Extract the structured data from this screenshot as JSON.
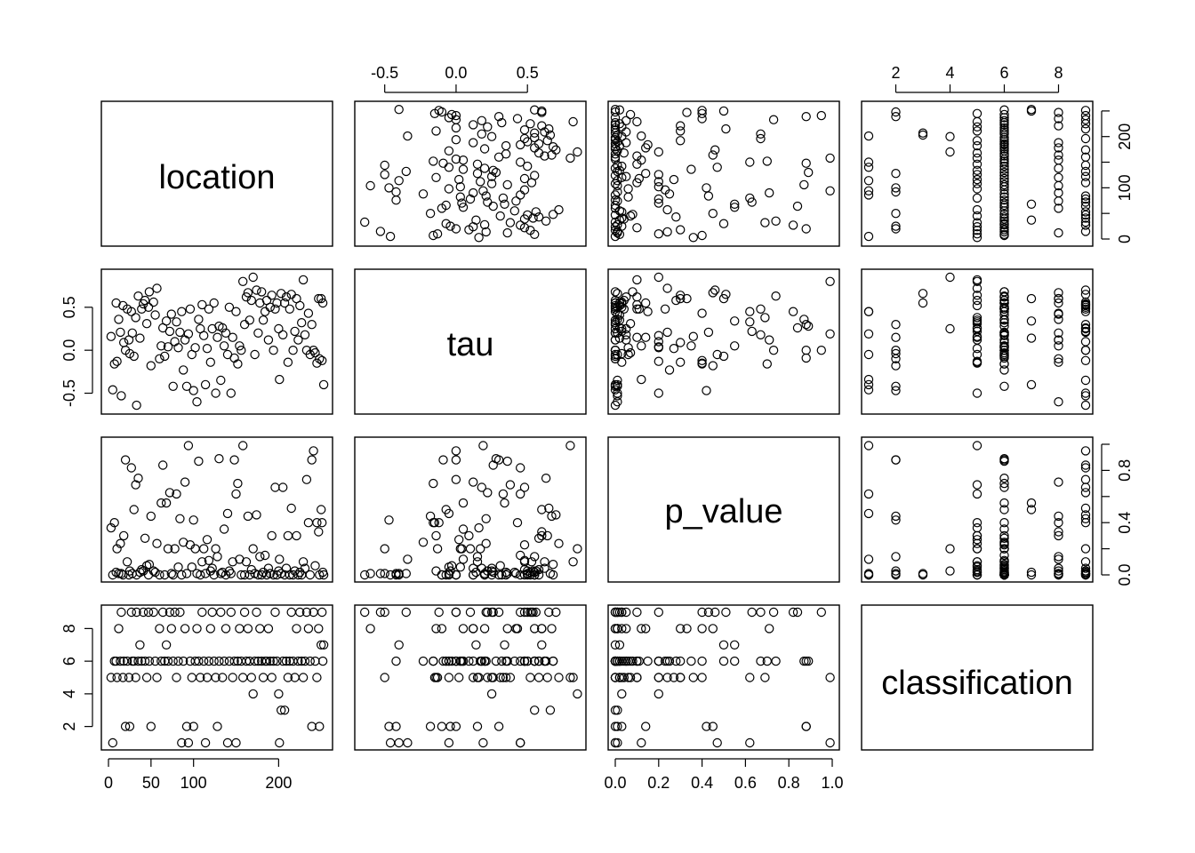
{
  "chart_data": {
    "type": "scatter",
    "variables": [
      "location",
      "tau",
      "p_value",
      "classification"
    ],
    "ranges": {
      "location": [
        0,
        255
      ],
      "tau": [
        -0.66,
        0.86
      ],
      "p_value": [
        0.0,
        1.0
      ],
      "classification": [
        1,
        9
      ]
    },
    "ticks": {
      "location": [
        0,
        50,
        100,
        200
      ],
      "tau": [
        -0.5,
        0.0,
        0.5
      ],
      "p_value": [
        0.0,
        0.2,
        0.4,
        0.6,
        0.8,
        1.0
      ],
      "p_value_vertical": [
        0.0,
        0.4,
        0.8
      ],
      "p_value_vertical_minor": [
        0.2,
        0.6,
        1.0
      ],
      "classification": [
        2,
        4,
        6,
        8
      ],
      "location_vertical": [
        0,
        100,
        200
      ],
      "location_vertical_minor": [
        50,
        150,
        250
      ]
    },
    "tick_labels": {
      "location_bottom": [
        "0",
        "50",
        "100",
        "200"
      ],
      "tau_top": [
        "-0.5",
        "0.0",
        "0.5"
      ],
      "tau_left": [
        "-0.5",
        "0.0",
        "0.5"
      ],
      "p_value_bottom": [
        "0.0",
        "0.2",
        "0.4",
        "0.6",
        "0.8",
        "1.0"
      ],
      "p_value_right": [
        "0.0",
        "0.4",
        "0.8"
      ],
      "classification_top": [
        "2",
        "4",
        "6",
        "8"
      ],
      "classification_left": [
        "2",
        "4",
        "6",
        "8"
      ],
      "location_right": [
        "0",
        "100",
        "200"
      ]
    },
    "grid": false,
    "legend": "none",
    "observations": [
      {
        "location": 3,
        "tau": 0.16,
        "p_value": 0.36,
        "classification": 5
      },
      {
        "location": 5,
        "tau": -0.46,
        "p_value": 0.0,
        "classification": 1
      },
      {
        "location": 7,
        "tau": -0.16,
        "p_value": 0.4,
        "classification": 6
      },
      {
        "location": 9,
        "tau": 0.55,
        "p_value": 0.02,
        "classification": 6
      },
      {
        "location": 10,
        "tau": -0.13,
        "p_value": 0.2,
        "classification": 5
      },
      {
        "location": 12,
        "tau": 0.36,
        "p_value": 0.01,
        "classification": 8
      },
      {
        "location": 14,
        "tau": 0.21,
        "p_value": 0.24,
        "classification": 6
      },
      {
        "location": 15,
        "tau": -0.53,
        "p_value": 0.01,
        "classification": 9
      },
      {
        "location": 17,
        "tau": 0.52,
        "p_value": 0.0,
        "classification": 5
      },
      {
        "location": 18,
        "tau": 0.09,
        "p_value": 0.3,
        "classification": 6
      },
      {
        "location": 20,
        "tau": 0.0,
        "p_value": 0.88,
        "classification": 2
      },
      {
        "location": 22,
        "tau": 0.48,
        "p_value": 0.1,
        "classification": 6
      },
      {
        "location": 24,
        "tau": 0.12,
        "p_value": 0.0,
        "classification": 5
      },
      {
        "location": 25,
        "tau": -0.04,
        "p_value": 0.03,
        "classification": 2
      },
      {
        "location": 27,
        "tau": 0.45,
        "p_value": 0.82,
        "classification": 9
      },
      {
        "location": 28,
        "tau": 0.2,
        "p_value": 0.01,
        "classification": 6
      },
      {
        "location": 30,
        "tau": -0.07,
        "p_value": 0.5,
        "classification": 6
      },
      {
        "location": 32,
        "tau": 0.38,
        "p_value": 0.69,
        "classification": 5
      },
      {
        "location": 33,
        "tau": -0.64,
        "p_value": 0.0,
        "classification": 9
      },
      {
        "location": 35,
        "tau": 0.63,
        "p_value": 0.74,
        "classification": 6
      },
      {
        "location": 37,
        "tau": 0.14,
        "p_value": 0.02,
        "classification": 7
      },
      {
        "location": 39,
        "tau": 0.48,
        "p_value": 0.04,
        "classification": 6
      },
      {
        "location": 41,
        "tau": 0.54,
        "p_value": 0.03,
        "classification": 9
      },
      {
        "location": 43,
        "tau": 0.58,
        "p_value": 0.28,
        "classification": 6
      },
      {
        "location": 45,
        "tau": 0.31,
        "p_value": 0.07,
        "classification": 5
      },
      {
        "location": 47,
        "tau": 0.5,
        "p_value": 0.0,
        "classification": 9
      },
      {
        "location": 48,
        "tau": 0.68,
        "p_value": 0.08,
        "classification": 6
      },
      {
        "location": 50,
        "tau": -0.18,
        "p_value": 0.45,
        "classification": 2
      },
      {
        "location": 53,
        "tau": 0.56,
        "p_value": 0.03,
        "classification": 9
      },
      {
        "location": 55,
        "tau": 0.41,
        "p_value": 0.02,
        "classification": 6
      },
      {
        "location": 57,
        "tau": 0.72,
        "p_value": 0.24,
        "classification": 5
      },
      {
        "location": 60,
        "tau": -0.1,
        "p_value": 0.0,
        "classification": 8
      },
      {
        "location": 62,
        "tau": 0.05,
        "p_value": 0.55,
        "classification": 6
      },
      {
        "location": 64,
        "tau": 0.26,
        "p_value": 0.84,
        "classification": 9
      },
      {
        "location": 66,
        "tau": -0.07,
        "p_value": 0.0,
        "classification": 6
      },
      {
        "location": 68,
        "tau": 0.34,
        "p_value": 0.55,
        "classification": 7
      },
      {
        "location": 70,
        "tau": 0.04,
        "p_value": 0.2,
        "classification": 6
      },
      {
        "location": 72,
        "tau": 0.22,
        "p_value": 0.63,
        "classification": 9
      },
      {
        "location": 74,
        "tau": 0.42,
        "p_value": 0.01,
        "classification": 8
      },
      {
        "location": 76,
        "tau": -0.42,
        "p_value": 0.0,
        "classification": 6
      },
      {
        "location": 78,
        "tau": 0.1,
        "p_value": 0.2,
        "classification": 9
      },
      {
        "location": 80,
        "tau": 0.33,
        "p_value": 0.62,
        "classification": 5
      },
      {
        "location": 82,
        "tau": 0.03,
        "p_value": 0.06,
        "classification": 6
      },
      {
        "location": 84,
        "tau": 0.21,
        "p_value": 0.43,
        "classification": 9
      },
      {
        "location": 86,
        "tau": 0.45,
        "p_value": 0.0,
        "classification": 1
      },
      {
        "location": 88,
        "tau": -0.23,
        "p_value": 0.25,
        "classification": 6
      },
      {
        "location": 90,
        "tau": 0.12,
        "p_value": 0.71,
        "classification": 8
      },
      {
        "location": 92,
        "tau": -0.42,
        "p_value": 0.01,
        "classification": 2
      },
      {
        "location": 94,
        "tau": 0.19,
        "p_value": 0.99,
        "classification": 1
      },
      {
        "location": 96,
        "tau": 0.48,
        "p_value": 0.23,
        "classification": 6
      },
      {
        "location": 98,
        "tau": -0.05,
        "p_value": 0.06,
        "classification": 5
      },
      {
        "location": 100,
        "tau": -0.47,
        "p_value": 0.42,
        "classification": 2
      },
      {
        "location": 102,
        "tau": 0.03,
        "p_value": 0.2,
        "classification": 6
      },
      {
        "location": 104,
        "tau": -0.6,
        "p_value": 0.01,
        "classification": 8
      },
      {
        "location": 106,
        "tau": 0.36,
        "p_value": 0.87,
        "classification": 6
      },
      {
        "location": 108,
        "tau": 0.25,
        "p_value": 0.0,
        "classification": 5
      },
      {
        "location": 110,
        "tau": 0.53,
        "p_value": 0.1,
        "classification": 9
      },
      {
        "location": 112,
        "tau": 0.17,
        "p_value": 0.2,
        "classification": 6
      },
      {
        "location": 114,
        "tau": -0.4,
        "p_value": 0.01,
        "classification": 1
      },
      {
        "location": 116,
        "tau": 0.02,
        "p_value": 0.27,
        "classification": 5
      },
      {
        "location": 118,
        "tau": 0.48,
        "p_value": 0.11,
        "classification": 6
      },
      {
        "location": 120,
        "tau": -0.14,
        "p_value": 0.03,
        "classification": 8
      },
      {
        "location": 122,
        "tau": 0.25,
        "p_value": 0.05,
        "classification": 9
      },
      {
        "location": 124,
        "tau": 0.55,
        "p_value": 0.0,
        "classification": 6
      },
      {
        "location": 126,
        "tau": -0.5,
        "p_value": 0.2,
        "classification": 5
      },
      {
        "location": 128,
        "tau": 0.15,
        "p_value": 0.14,
        "classification": 2
      },
      {
        "location": 130,
        "tau": 0.28,
        "p_value": 0.89,
        "classification": 6
      },
      {
        "location": 132,
        "tau": -0.35,
        "p_value": 0.01,
        "classification": 9
      },
      {
        "location": 134,
        "tau": 0.26,
        "p_value": 0.02,
        "classification": 5
      },
      {
        "location": 136,
        "tau": 0.05,
        "p_value": 0.35,
        "classification": 6
      },
      {
        "location": 138,
        "tau": 0.2,
        "p_value": 0.0,
        "classification": 8
      },
      {
        "location": 140,
        "tau": -0.05,
        "p_value": 0.47,
        "classification": 1
      },
      {
        "location": 142,
        "tau": 0.5,
        "p_value": 0.03,
        "classification": 6
      },
      {
        "location": 144,
        "tau": -0.5,
        "p_value": 0.01,
        "classification": 9
      },
      {
        "location": 146,
        "tau": 0.15,
        "p_value": 0.1,
        "classification": 5
      },
      {
        "location": 148,
        "tau": -0.09,
        "p_value": 0.88,
        "classification": 6
      },
      {
        "location": 150,
        "tau": 0.45,
        "p_value": 0.62,
        "classification": 1
      },
      {
        "location": 152,
        "tau": -0.16,
        "p_value": 0.7,
        "classification": 6
      },
      {
        "location": 154,
        "tau": 0.05,
        "p_value": 0.12,
        "classification": 8
      },
      {
        "location": 156,
        "tau": 0.0,
        "p_value": 0.0,
        "classification": 6
      },
      {
        "location": 158,
        "tau": 0.8,
        "p_value": 0.99,
        "classification": 5
      },
      {
        "location": 160,
        "tau": 0.3,
        "p_value": 0.0,
        "classification": 9
      },
      {
        "location": 162,
        "tau": 0.62,
        "p_value": 0.1,
        "classification": 6
      },
      {
        "location": 164,
        "tau": 0.67,
        "p_value": 0.45,
        "classification": 8
      },
      {
        "location": 166,
        "tau": 0.35,
        "p_value": 0.0,
        "classification": 6
      },
      {
        "location": 168,
        "tau": 0.58,
        "p_value": 0.04,
        "classification": 5
      },
      {
        "location": 170,
        "tau": 0.85,
        "p_value": 0.2,
        "classification": 4
      },
      {
        "location": 172,
        "tau": -0.05,
        "p_value": 0.01,
        "classification": 6
      },
      {
        "location": 174,
        "tau": 0.7,
        "p_value": 0.46,
        "classification": 9
      },
      {
        "location": 176,
        "tau": 0.2,
        "p_value": 0.0,
        "classification": 6
      },
      {
        "location": 178,
        "tau": 0.55,
        "p_value": 0.14,
        "classification": 8
      },
      {
        "location": 180,
        "tau": 0.68,
        "p_value": 0.0,
        "classification": 6
      },
      {
        "location": 182,
        "tau": 0.35,
        "p_value": 0.02,
        "classification": 5
      },
      {
        "location": 184,
        "tau": 0.45,
        "p_value": 0.15,
        "classification": 6
      },
      {
        "location": 186,
        "tau": 0.58,
        "p_value": 0.0,
        "classification": 6
      },
      {
        "location": 188,
        "tau": 0.12,
        "p_value": 0.05,
        "classification": 8
      },
      {
        "location": 190,
        "tau": 0.5,
        "p_value": 0.01,
        "classification": 6
      },
      {
        "location": 192,
        "tau": 0.64,
        "p_value": 0.3,
        "classification": 5
      },
      {
        "location": 194,
        "tau": 0.0,
        "p_value": 0.0,
        "classification": 6
      },
      {
        "location": 196,
        "tau": 0.48,
        "p_value": 0.67,
        "classification": 9
      },
      {
        "location": 198,
        "tau": 0.55,
        "p_value": 0.0,
        "classification": 6
      },
      {
        "location": 200,
        "tau": 0.25,
        "p_value": 0.03,
        "classification": 4
      },
      {
        "location": 201,
        "tau": -0.34,
        "p_value": 0.12,
        "classification": 1
      },
      {
        "location": 203,
        "tau": 0.66,
        "p_value": 0.01,
        "classification": 3
      },
      {
        "location": 205,
        "tau": 0.18,
        "p_value": 0.67,
        "classification": 6
      },
      {
        "location": 207,
        "tau": 0.55,
        "p_value": 0.0,
        "classification": 3
      },
      {
        "location": 209,
        "tau": 0.62,
        "p_value": 0.05,
        "classification": 6
      },
      {
        "location": 211,
        "tau": -0.14,
        "p_value": 0.3,
        "classification": 5
      },
      {
        "location": 213,
        "tau": 0.48,
        "p_value": 0.0,
        "classification": 6
      },
      {
        "location": 215,
        "tau": 0.65,
        "p_value": 0.51,
        "classification": 9
      },
      {
        "location": 217,
        "tau": 0.0,
        "p_value": 0.0,
        "classification": 6
      },
      {
        "location": 219,
        "tau": 0.22,
        "p_value": 0.03,
        "classification": 5
      },
      {
        "location": 221,
        "tau": 0.6,
        "p_value": 0.3,
        "classification": 8
      },
      {
        "location": 223,
        "tau": 0.12,
        "p_value": 0.0,
        "classification": 6
      },
      {
        "location": 225,
        "tau": 0.52,
        "p_value": 0.02,
        "classification": 9
      },
      {
        "location": 227,
        "tau": 0.32,
        "p_value": 0.0,
        "classification": 6
      },
      {
        "location": 229,
        "tau": 0.82,
        "p_value": 0.1,
        "classification": 5
      },
      {
        "location": 231,
        "tau": 0.18,
        "p_value": 0.05,
        "classification": 6
      },
      {
        "location": 233,
        "tau": 0.0,
        "p_value": 0.73,
        "classification": 9
      },
      {
        "location": 235,
        "tau": 0.43,
        "p_value": 0.4,
        "classification": 8
      },
      {
        "location": 237,
        "tau": -0.05,
        "p_value": 0.0,
        "classification": 6
      },
      {
        "location": 239,
        "tau": 0.3,
        "p_value": 0.88,
        "classification": 2
      },
      {
        "location": 241,
        "tau": 0.0,
        "p_value": 0.95,
        "classification": 9
      },
      {
        "location": 243,
        "tau": -0.03,
        "p_value": 0.07,
        "classification": 6
      },
      {
        "location": 245,
        "tau": -0.15,
        "p_value": 0.4,
        "classification": 5
      },
      {
        "location": 247,
        "tau": 0.6,
        "p_value": 0.33,
        "classification": 8
      },
      {
        "location": 248,
        "tau": -0.1,
        "p_value": 0.0,
        "classification": 2
      },
      {
        "location": 250,
        "tau": 0.6,
        "p_value": 0.5,
        "classification": 7
      },
      {
        "location": 251,
        "tau": -0.12,
        "p_value": 0.4,
        "classification": 9
      },
      {
        "location": 252,
        "tau": 0.55,
        "p_value": 0.02,
        "classification": 6
      },
      {
        "location": 253,
        "tau": -0.4,
        "p_value": 0.0,
        "classification": 7
      }
    ]
  },
  "panels": {
    "diagonal_labels": [
      "location",
      "tau",
      "p_value",
      "classification"
    ]
  }
}
